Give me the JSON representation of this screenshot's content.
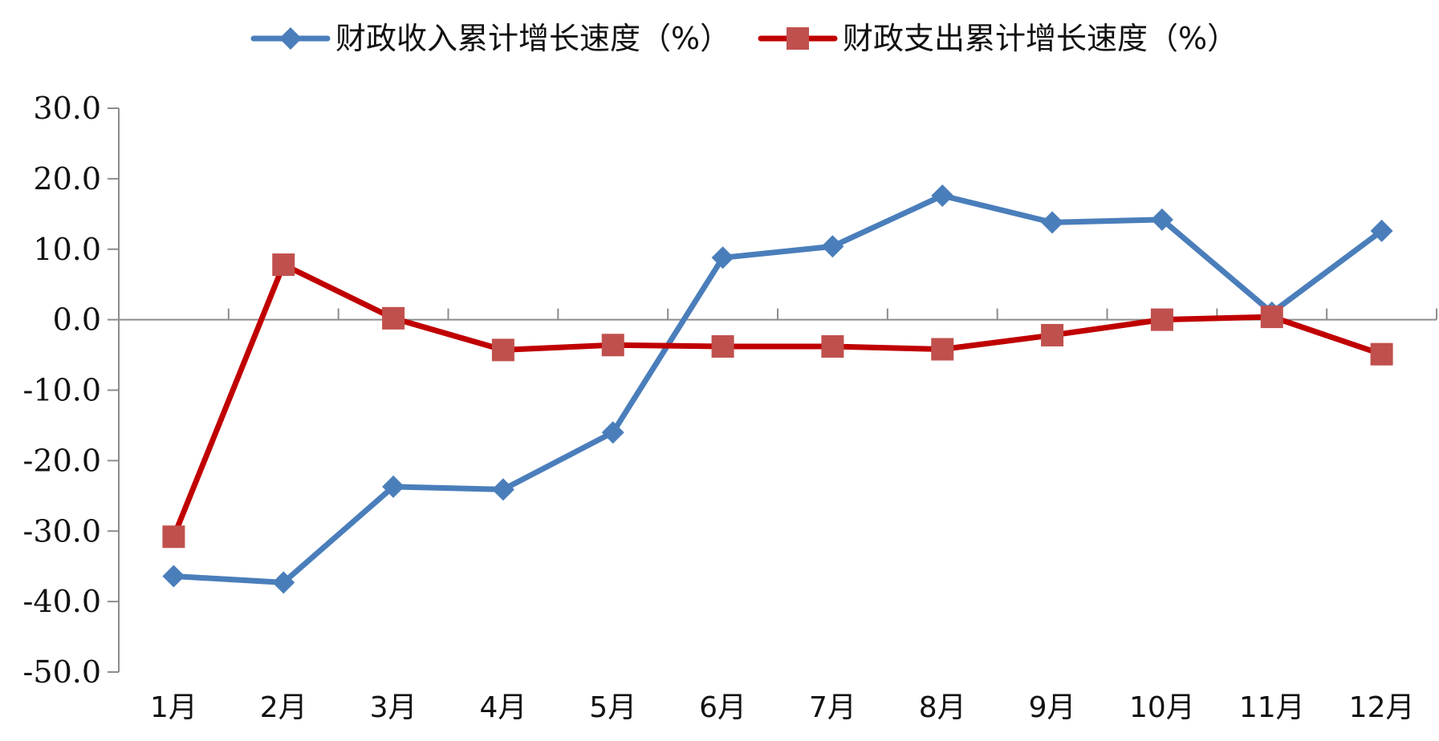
{
  "chart_data": {
    "type": "line",
    "title": "",
    "xlabel": "",
    "ylabel": "",
    "categories": [
      "1月",
      "2月",
      "3月",
      "4月",
      "5月",
      "6月",
      "7月",
      "8月",
      "9月",
      "10月",
      "11月",
      "12月"
    ],
    "ylim": [
      -50,
      30
    ],
    "yticks": [
      30,
      20,
      10,
      0,
      -10,
      -20,
      -30,
      -40,
      -50
    ],
    "ytick_labels": [
      "30.0",
      "20.0",
      "10.0",
      "0.0",
      "-10.0",
      "-20.0",
      "-30.0",
      "-40.0",
      "-50.0"
    ],
    "grid": false,
    "legend_position": "top",
    "series": [
      {
        "name": "财政收入累计增长速度（%）",
        "color": "#4a7ebb",
        "marker": "diamond",
        "values": [
          -36.4,
          -37.3,
          -23.7,
          -24.1,
          -16.0,
          8.8,
          10.4,
          17.6,
          13.8,
          14.2,
          1.0,
          12.6
        ]
      },
      {
        "name": "财政支出累计增长速度（%）",
        "color": "#c0504d",
        "line_color": "#c00000",
        "marker": "square",
        "values": [
          -30.8,
          7.8,
          0.2,
          -4.3,
          -3.6,
          -3.8,
          -3.8,
          -4.2,
          -2.2,
          0.0,
          0.4,
          -4.9
        ]
      }
    ]
  }
}
